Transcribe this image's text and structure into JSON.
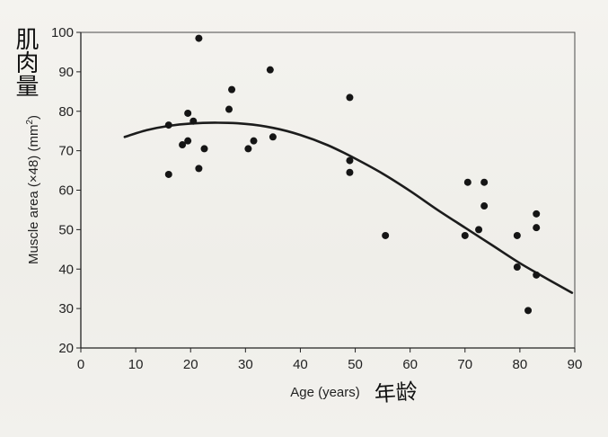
{
  "annotations": {
    "handwritten_y": "肌肉量",
    "handwritten_x": "年龄"
  },
  "chart_data": {
    "type": "scatter",
    "title": "",
    "xlabel": "Age (years)",
    "ylabel": "Muscle area (×48) (mm²)",
    "ylabel_main": "Muscle area (×48) (mm",
    "ylabel_sup": "2",
    "ylabel_close": ")",
    "xlim": [
      0,
      90
    ],
    "ylim": [
      20,
      100
    ],
    "xticks": [
      "0",
      "10",
      "20",
      "30",
      "40",
      "50",
      "60",
      "70",
      "80",
      "90"
    ],
    "yticks": [
      "20",
      "30",
      "40",
      "50",
      "60",
      "70",
      "80",
      "90",
      "100"
    ],
    "grid": false,
    "points": [
      {
        "x": 16,
        "y": 64
      },
      {
        "x": 16,
        "y": 76.5
      },
      {
        "x": 18.5,
        "y": 71.5
      },
      {
        "x": 19.5,
        "y": 72.5
      },
      {
        "x": 19.5,
        "y": 79.5
      },
      {
        "x": 20.5,
        "y": 77.5
      },
      {
        "x": 21.5,
        "y": 98.5
      },
      {
        "x": 21.5,
        "y": 65.5
      },
      {
        "x": 22.5,
        "y": 70.5
      },
      {
        "x": 27,
        "y": 80.5
      },
      {
        "x": 27.5,
        "y": 85.5
      },
      {
        "x": 30.5,
        "y": 70.5
      },
      {
        "x": 31.5,
        "y": 72.5
      },
      {
        "x": 34.5,
        "y": 90.5
      },
      {
        "x": 35,
        "y": 73.5
      },
      {
        "x": 49,
        "y": 83.5
      },
      {
        "x": 49,
        "y": 67.5
      },
      {
        "x": 49,
        "y": 64.5
      },
      {
        "x": 55.5,
        "y": 48.5
      },
      {
        "x": 70,
        "y": 48.5
      },
      {
        "x": 70.5,
        "y": 62
      },
      {
        "x": 72.5,
        "y": 50
      },
      {
        "x": 73.5,
        "y": 62
      },
      {
        "x": 73.5,
        "y": 56
      },
      {
        "x": 79.5,
        "y": 48.5
      },
      {
        "x": 79.5,
        "y": 40.5
      },
      {
        "x": 81.5,
        "y": 29.5
      },
      {
        "x": 83,
        "y": 54
      },
      {
        "x": 83,
        "y": 50.5
      },
      {
        "x": 83,
        "y": 38.5
      }
    ],
    "trend_curve": [
      {
        "x": 8,
        "y": 73.5
      },
      {
        "x": 12,
        "y": 75.2
      },
      {
        "x": 16,
        "y": 76.3
      },
      {
        "x": 20,
        "y": 76.9
      },
      {
        "x": 25,
        "y": 77.1
      },
      {
        "x": 30,
        "y": 76.8
      },
      {
        "x": 35,
        "y": 75.8
      },
      {
        "x": 40,
        "y": 74.0
      },
      {
        "x": 45,
        "y": 71.4
      },
      {
        "x": 50,
        "y": 68.0
      },
      {
        "x": 55,
        "y": 64.2
      },
      {
        "x": 60,
        "y": 59.8
      },
      {
        "x": 65,
        "y": 55.0
      },
      {
        "x": 70,
        "y": 50.5
      },
      {
        "x": 75,
        "y": 46.0
      },
      {
        "x": 80,
        "y": 41.5
      },
      {
        "x": 85,
        "y": 37.5
      },
      {
        "x": 89.5,
        "y": 34.0
      }
    ]
  }
}
